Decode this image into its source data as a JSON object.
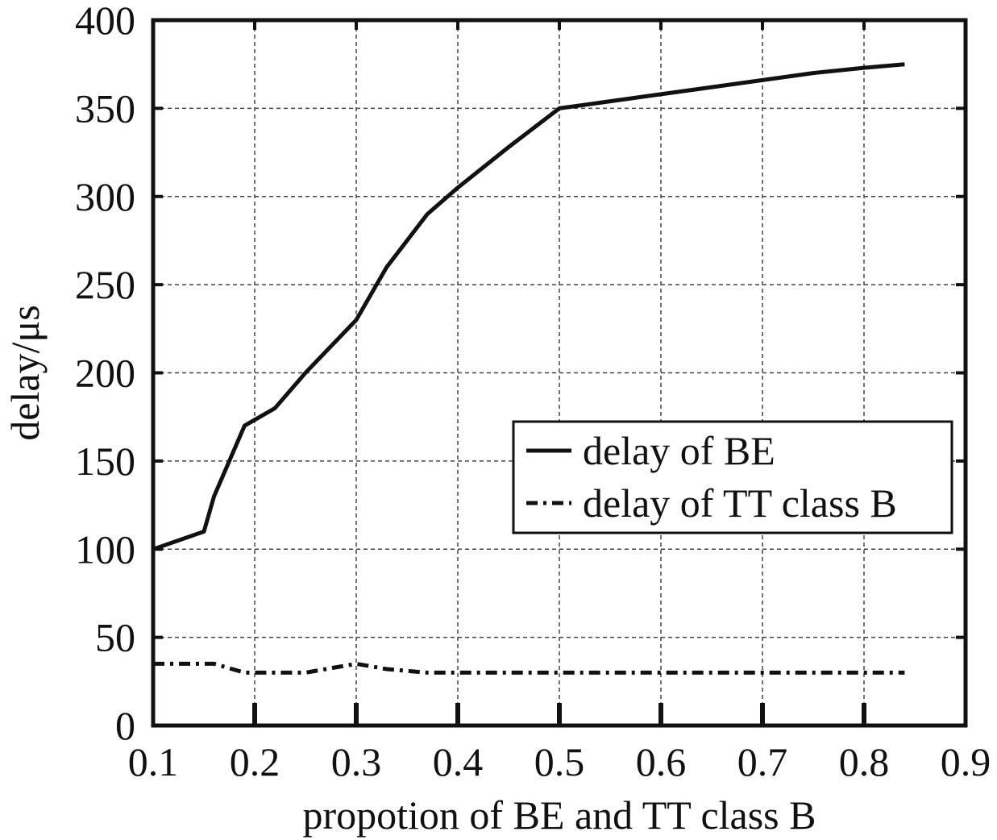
{
  "chart_data": {
    "type": "line",
    "title": "",
    "xlabel": "propotion of BE and TT class B",
    "ylabel": "delay/μs",
    "xlim": [
      0.1,
      0.9
    ],
    "ylim": [
      0,
      400
    ],
    "xticks": [
      "0.1",
      "0.2",
      "0.3",
      "0.4",
      "0.5",
      "0.6",
      "0.7",
      "0.8",
      "0.9"
    ],
    "yticks": [
      "0",
      "50",
      "100",
      "150",
      "200",
      "250",
      "300",
      "350",
      "400"
    ],
    "grid": true,
    "legend_position": "right-middle",
    "series": [
      {
        "name": "delay of BE",
        "style": "solid",
        "color": "#111111",
        "x": [
          0.1,
          0.15,
          0.16,
          0.19,
          0.22,
          0.25,
          0.3,
          0.33,
          0.37,
          0.4,
          0.45,
          0.5,
          0.6,
          0.7,
          0.75,
          0.8,
          0.84
        ],
        "y": [
          100,
          110,
          130,
          170,
          180,
          200,
          230,
          260,
          290,
          305,
          328,
          350,
          358,
          366,
          370,
          373,
          375
        ]
      },
      {
        "name": "delay of TT class B",
        "style": "dashdot",
        "color": "#111111",
        "x": [
          0.1,
          0.15,
          0.16,
          0.19,
          0.22,
          0.25,
          0.3,
          0.33,
          0.37,
          0.4,
          0.5,
          0.6,
          0.7,
          0.8,
          0.84
        ],
        "y": [
          35,
          35,
          35,
          30,
          30,
          30,
          35,
          32,
          30,
          30,
          30,
          30,
          30,
          30,
          30
        ]
      }
    ]
  }
}
